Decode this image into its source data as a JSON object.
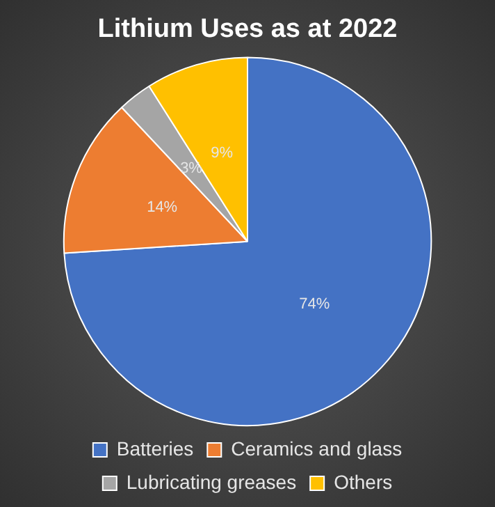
{
  "chart_data": {
    "type": "pie",
    "title": "Lithium Uses as at 2022",
    "categories": [
      "Batteries",
      "Ceramics and glass",
      "Lubricating greases",
      "Others"
    ],
    "values": [
      74,
      14,
      3,
      9
    ],
    "colors": [
      "#4472c4",
      "#ed7d31",
      "#a5a5a5",
      "#ffc000"
    ],
    "value_labels": [
      "74%",
      "14%",
      "3%",
      "9%"
    ],
    "legend": "bottom"
  }
}
